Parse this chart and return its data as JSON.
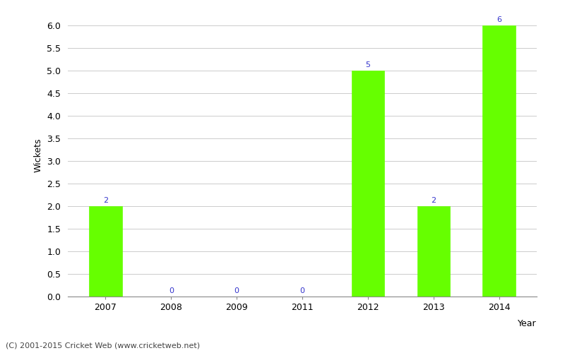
{
  "categories": [
    "2007",
    "2008",
    "2009",
    "2011",
    "2012",
    "2013",
    "2014"
  ],
  "values": [
    2,
    0,
    0,
    0,
    5,
    2,
    6
  ],
  "bar_color": "#66ff00",
  "bar_edge_color": "#66ff00",
  "xlabel": "Year",
  "ylabel": "Wickets",
  "ylim": [
    0.0,
    6.25
  ],
  "yticks": [
    0.0,
    0.5,
    1.0,
    1.5,
    2.0,
    2.5,
    3.0,
    3.5,
    4.0,
    4.5,
    5.0,
    5.5,
    6.0
  ],
  "annotation_color": "#3333cc",
  "annotation_fontsize": 8,
  "xlabel_fontsize": 9,
  "ylabel_fontsize": 9,
  "tick_fontsize": 9,
  "grid_color": "#cccccc",
  "background_color": "#ffffff",
  "footer_text": "(C) 2001-2015 Cricket Web (www.cricketweb.net)",
  "footer_fontsize": 8,
  "footer_color": "#444444"
}
